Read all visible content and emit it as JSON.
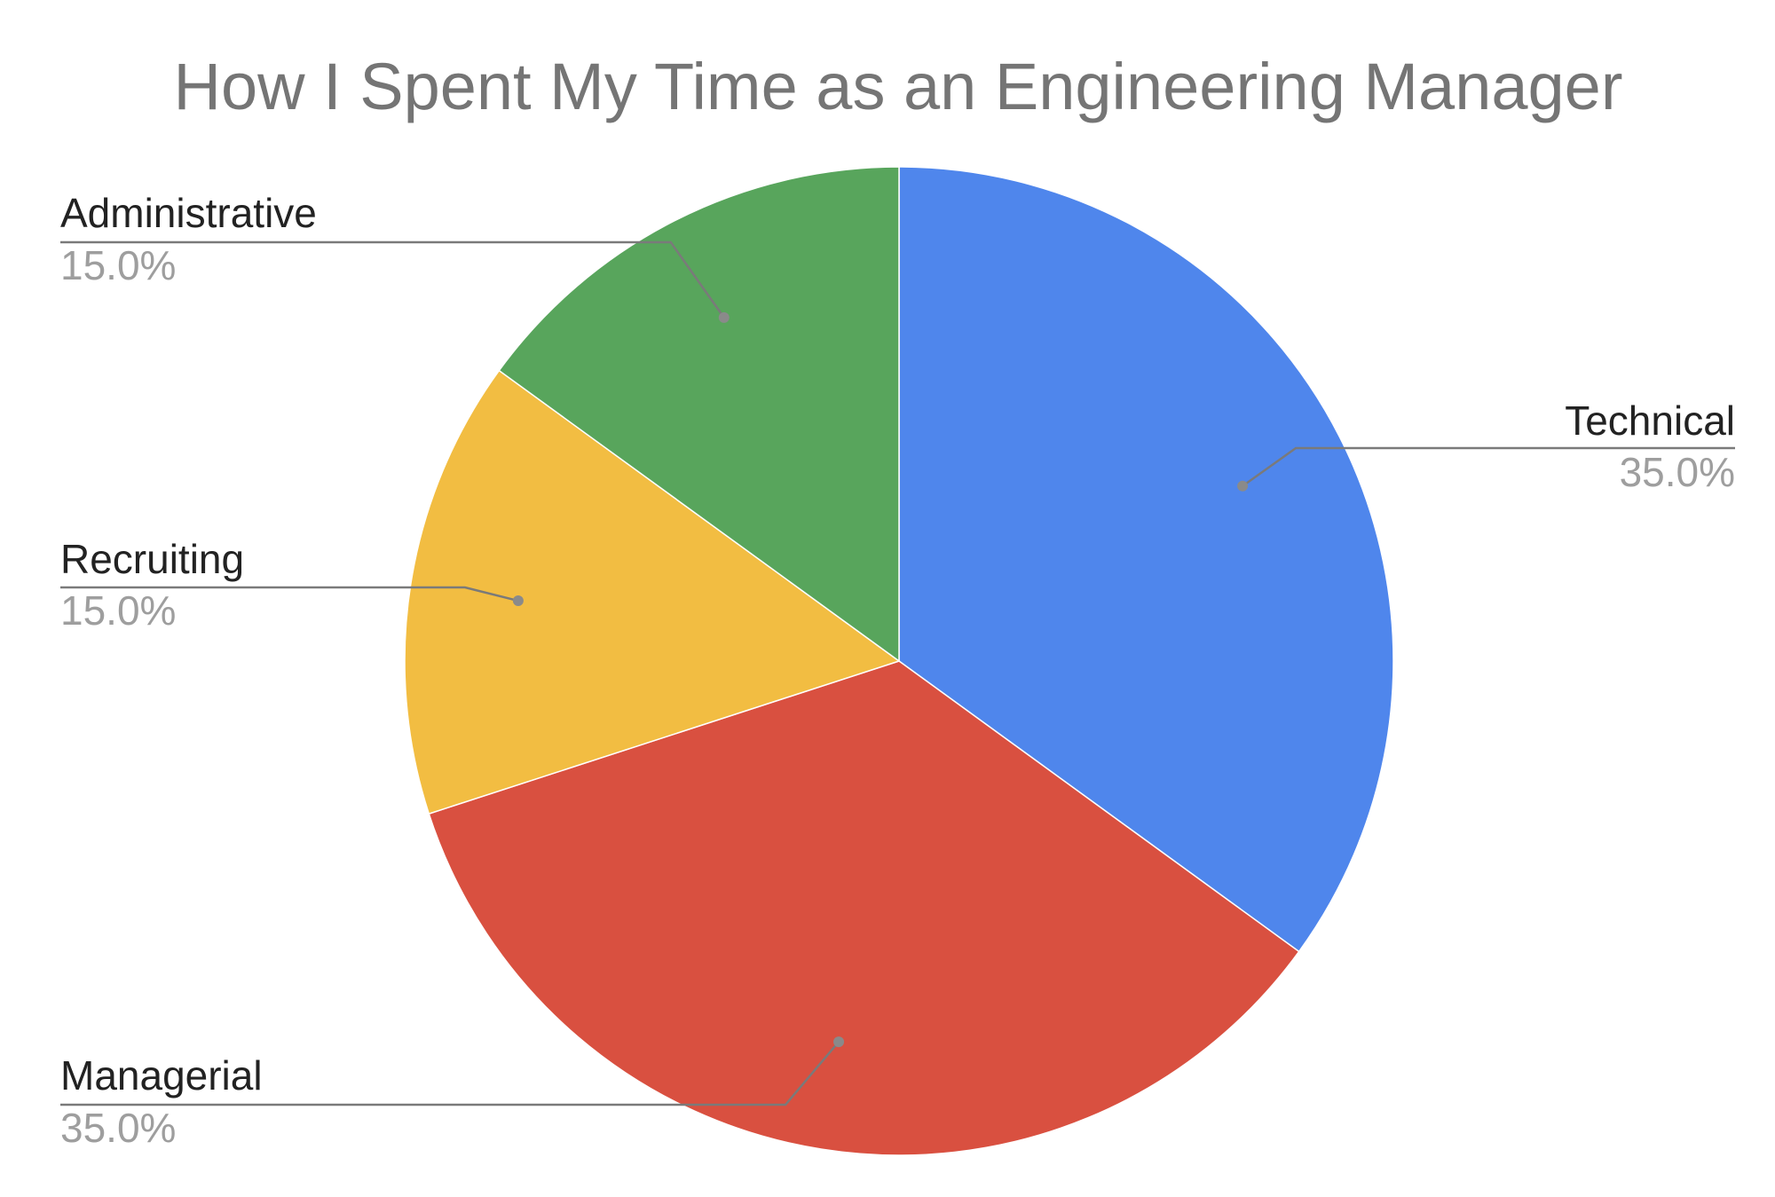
{
  "chart_data": {
    "type": "pie",
    "title": "How I Spent My Time as an Engineering Manager",
    "start_angle_deg": 0,
    "direction": "clockwise",
    "slices": [
      {
        "label": "Technical",
        "value": 35.0,
        "display": "35.0%",
        "color": "#4F86EC",
        "label_side": "right"
      },
      {
        "label": "Managerial",
        "value": 35.0,
        "display": "35.0%",
        "color": "#D95040",
        "label_side": "left"
      },
      {
        "label": "Recruiting",
        "value": 15.0,
        "display": "15.0%",
        "color": "#F2BD42",
        "label_side": "left"
      },
      {
        "label": "Administrative",
        "value": 15.0,
        "display": "15.0%",
        "color": "#58A55C",
        "label_side": "left"
      }
    ],
    "legend": "none (labels on leader lines)"
  }
}
